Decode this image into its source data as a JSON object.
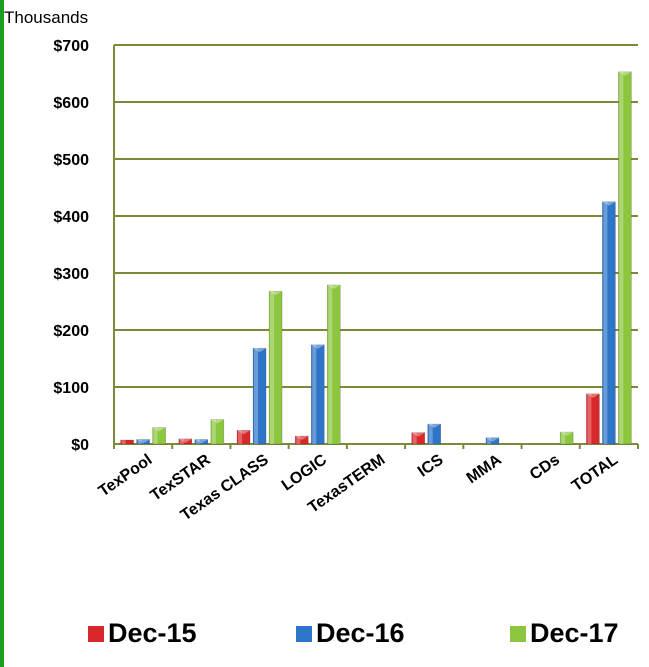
{
  "chart_data": {
    "type": "bar",
    "unit_label": "Thousands",
    "categories": [
      "TexPool",
      "TexSTAR",
      "Texas CLASS",
      "LOGIC",
      "TexasTERM",
      "ICS",
      "MMA",
      "CDs",
      "TOTAL"
    ],
    "series": [
      {
        "name": "Dec-15",
        "color": "#d9282b",
        "values": [
          7,
          9,
          24,
          14,
          0,
          20,
          0,
          0,
          88
        ]
      },
      {
        "name": "Dec-16",
        "color": "#2e75c8",
        "values": [
          8,
          8,
          168,
          174,
          0,
          35,
          11,
          0,
          425
        ]
      },
      {
        "name": "Dec-17",
        "color": "#8cc63e",
        "values": [
          29,
          43,
          268,
          279,
          0,
          0,
          0,
          21,
          653
        ]
      }
    ],
    "y_ticks": [
      "$0",
      "$100",
      "$200",
      "$300",
      "$400",
      "$500",
      "$600",
      "$700"
    ],
    "ylim": [
      0,
      700
    ],
    "grid": true,
    "legend_position": "bottom",
    "gridline_color": "#7a8a3a",
    "border_color": "#1e9e1e"
  }
}
